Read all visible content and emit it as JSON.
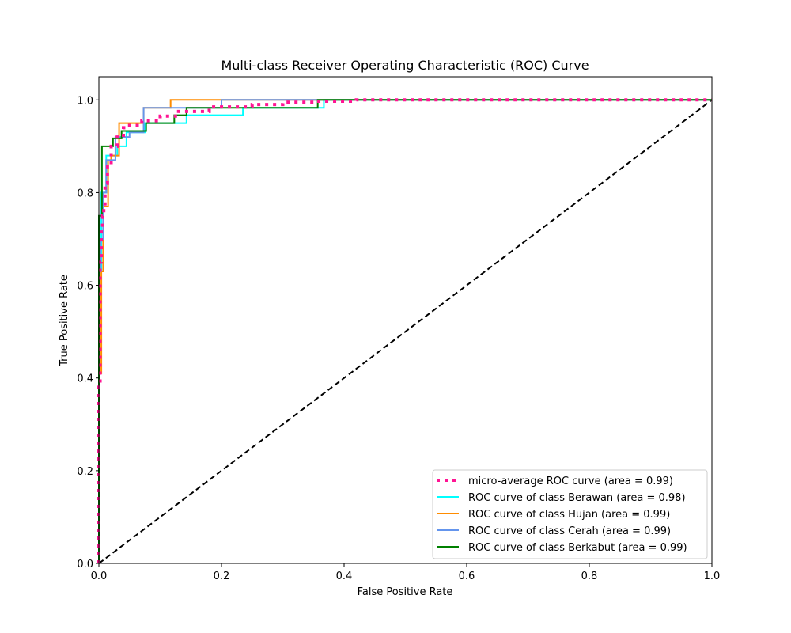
{
  "chart_data": {
    "type": "line",
    "title": "Multi-class Receiver Operating Characteristic (ROC) Curve",
    "xlabel": "False Positive Rate",
    "ylabel": "True Positive Rate",
    "xlim": [
      0.0,
      1.0
    ],
    "ylim": [
      0.0,
      1.05
    ],
    "xticks": [
      "0.0",
      "0.2",
      "0.4",
      "0.6",
      "0.8",
      "1.0"
    ],
    "yticks": [
      "0.0",
      "0.2",
      "0.4",
      "0.6",
      "0.8",
      "1.0"
    ],
    "grid": false,
    "legend_position": "lower-right",
    "series": [
      {
        "name": "micro-average ROC curve (area = 0.99)",
        "color": "#ff1493",
        "style": "dotted",
        "x": [
          0.0,
          0.0,
          0.002,
          0.002,
          0.004,
          0.004,
          0.006,
          0.006,
          0.008,
          0.008,
          0.01,
          0.01,
          0.014,
          0.014,
          0.02,
          0.02,
          0.03,
          0.03,
          0.04,
          0.04,
          0.05,
          0.05,
          0.07,
          0.07,
          0.1,
          0.1,
          0.13,
          0.13,
          0.18,
          0.18,
          0.25,
          0.25,
          0.3,
          0.3,
          0.35,
          0.35,
          0.42,
          0.42,
          1.0
        ],
        "y": [
          0.0,
          0.38,
          0.38,
          0.65,
          0.65,
          0.72,
          0.72,
          0.75,
          0.75,
          0.77,
          0.77,
          0.82,
          0.82,
          0.86,
          0.86,
          0.9,
          0.9,
          0.92,
          0.92,
          0.94,
          0.94,
          0.945,
          0.945,
          0.955,
          0.955,
          0.965,
          0.965,
          0.975,
          0.975,
          0.985,
          0.985,
          0.99,
          0.99,
          0.995,
          0.995,
          0.997,
          0.997,
          1.0,
          1.0
        ]
      },
      {
        "name": "ROC curve of class Berawan (area = 0.98)",
        "color": "#00ffff",
        "style": "solid",
        "x": [
          0.0,
          0.0,
          0.004,
          0.004,
          0.012,
          0.012,
          0.018,
          0.018,
          0.03,
          0.03,
          0.045,
          0.045,
          0.075,
          0.075,
          0.143,
          0.143,
          0.235,
          0.235,
          0.367,
          0.367,
          1.0
        ],
        "y": [
          0.0,
          0.63,
          0.63,
          0.8,
          0.8,
          0.88,
          0.88,
          0.88,
          0.88,
          0.9,
          0.9,
          0.93,
          0.93,
          0.95,
          0.95,
          0.967,
          0.967,
          0.983,
          0.983,
          1.0,
          1.0
        ]
      },
      {
        "name": "ROC curve of class Hujan (area = 0.99)",
        "color": "#ff8c00",
        "style": "solid",
        "x": [
          0.0,
          0.0,
          0.004,
          0.004,
          0.007,
          0.007,
          0.015,
          0.015,
          0.02,
          0.02,
          0.033,
          0.033,
          0.06,
          0.06,
          0.073,
          0.073,
          0.117,
          0.117,
          0.2,
          0.2,
          1.0
        ],
        "y": [
          0.0,
          0.41,
          0.41,
          0.63,
          0.63,
          0.77,
          0.77,
          0.87,
          0.87,
          0.88,
          0.88,
          0.95,
          0.95,
          0.95,
          0.95,
          0.983,
          0.983,
          1.0,
          1.0,
          1.0,
          1.0
        ]
      },
      {
        "name": "ROC curve of class Cerah (area = 0.99)",
        "color": "#6495ed",
        "style": "solid",
        "x": [
          0.0,
          0.0,
          0.003,
          0.003,
          0.007,
          0.007,
          0.012,
          0.012,
          0.018,
          0.018,
          0.027,
          0.027,
          0.05,
          0.05,
          0.073,
          0.073,
          0.2,
          0.2,
          0.36,
          0.36,
          1.0
        ],
        "y": [
          0.0,
          0.63,
          0.63,
          0.7,
          0.7,
          0.8,
          0.8,
          0.87,
          0.87,
          0.87,
          0.87,
          0.92,
          0.92,
          0.93,
          0.93,
          0.983,
          0.983,
          1.0,
          1.0,
          1.0,
          1.0
        ]
      },
      {
        "name": "ROC curve of class Berkabut (area = 0.99)",
        "color": "#008000",
        "style": "solid",
        "x": [
          0.0,
          0.0,
          0.005,
          0.005,
          0.023,
          0.023,
          0.037,
          0.037,
          0.077,
          0.077,
          0.123,
          0.123,
          0.143,
          0.143,
          0.357,
          0.357,
          1.0
        ],
        "y": [
          0.0,
          0.75,
          0.75,
          0.9,
          0.9,
          0.917,
          0.917,
          0.933,
          0.933,
          0.95,
          0.95,
          0.967,
          0.967,
          0.983,
          0.983,
          1.0,
          1.0
        ]
      },
      {
        "name": "",
        "color": "#000000",
        "style": "dashed",
        "x": [
          0.0,
          1.0
        ],
        "y": [
          0.0,
          1.0
        ]
      }
    ],
    "legend": [
      "micro-average ROC curve (area = 0.99)",
      "ROC curve of class Berawan (area = 0.98)",
      "ROC curve of class Hujan (area = 0.99)",
      "ROC curve of class Cerah (area = 0.99)",
      "ROC curve of class Berkabut (area = 0.99)"
    ]
  }
}
